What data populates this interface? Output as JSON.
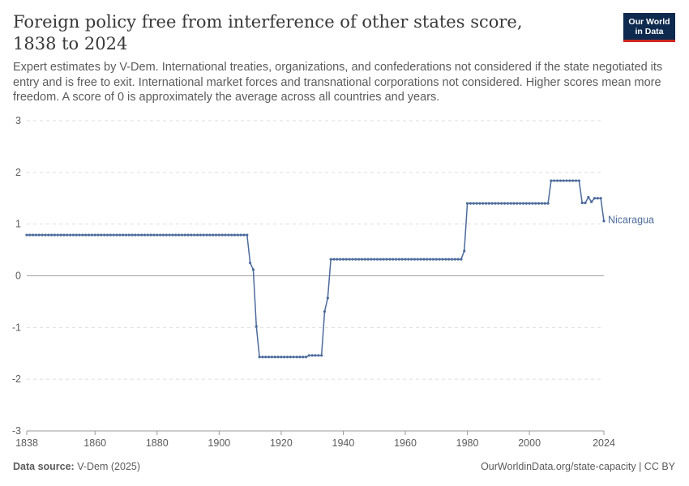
{
  "header": {
    "title": "Foreign policy free from interference of other states score, 1838 to 2024",
    "subtitle": "Expert estimates by V-Dem. International treaties, organizations, and confederations not considered if the state negotiated its entry and is free to exit. International market forces and transnational corporations not considered. Higher scores mean more freedom. A score of 0 is approximately the average across all countries and years.",
    "logo_line1": "Our World",
    "logo_line2": "in Data"
  },
  "footer": {
    "source_label": "Data source:",
    "source_value": "V-Dem (2025)",
    "credit": "OurWorldinData.org/state-capacity | CC BY"
  },
  "colors": {
    "series": "#4c6a9c",
    "grid": "#dddddd",
    "zero_line": "#a1a1a1",
    "text": "#5b5b5b"
  },
  "chart_data": {
    "type": "line",
    "title": "Foreign policy free from interference of other states score, 1838 to 2024",
    "xlabel": "",
    "ylabel": "",
    "xlim": [
      1838,
      2024
    ],
    "ylim": [
      -3,
      3
    ],
    "x_ticks": [
      1838,
      1860,
      1880,
      1900,
      1920,
      1940,
      1960,
      1980,
      2000,
      2024
    ],
    "y_ticks": [
      -3,
      -2,
      -1,
      0,
      1,
      2,
      3
    ],
    "grid": "horizontal dashed",
    "legend": "inline label at line end",
    "series": [
      {
        "name": "Nicaragua",
        "segments": [
          {
            "from": 1838,
            "to": 1909,
            "value": 0.79
          },
          {
            "from": 1910,
            "to": 1910,
            "value": 0.25
          },
          {
            "from": 1911,
            "to": 1911,
            "value": 0.12
          },
          {
            "from": 1912,
            "to": 1912,
            "value": -0.98
          },
          {
            "from": 1913,
            "to": 1928,
            "value": -1.57
          },
          {
            "from": 1929,
            "to": 1933,
            "value": -1.54
          },
          {
            "from": 1934,
            "to": 1934,
            "value": -0.69
          },
          {
            "from": 1935,
            "to": 1935,
            "value": -0.43
          },
          {
            "from": 1936,
            "to": 1978,
            "value": 0.32
          },
          {
            "from": 1979,
            "to": 1979,
            "value": 0.48
          },
          {
            "from": 1980,
            "to": 2006,
            "value": 1.4
          },
          {
            "from": 2007,
            "to": 2016,
            "value": 1.84
          },
          {
            "from": 2017,
            "to": 2018,
            "value": 1.41
          },
          {
            "from": 2019,
            "to": 2019,
            "value": 1.52
          },
          {
            "from": 2020,
            "to": 2020,
            "value": 1.43
          },
          {
            "from": 2021,
            "to": 2023,
            "value": 1.5
          },
          {
            "from": 2024,
            "to": 2024,
            "value": 1.06
          }
        ]
      }
    ]
  }
}
